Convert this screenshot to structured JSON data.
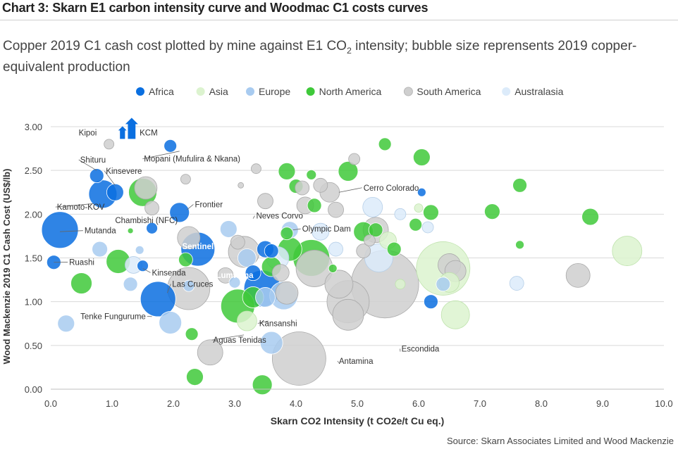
{
  "title": "Chart 3: Skarn E1 carbon intensity curve and Woodmac C1 costs curves",
  "subtitle": {
    "before": "Copper 2019 C1 cash cost plotted by mine against E1 CO",
    "sub": "2",
    "after": " intensity; bubble size reprensents 2019 copper-equivalent production"
  },
  "source": "Source: Skarn Associates Limited and Wood Mackenzie",
  "chart_data": {
    "type": "scatter",
    "title": "Chart 3: Skarn E1 carbon intensity curve and Woodmac C1 costs curves",
    "xlabel": "Skarn CO2 Intensity (t CO2e/t Cu eq.)",
    "ylabel": "Wood Mackenzie 2019 C1 Cash Cost (US$/lb)",
    "xlim": [
      0,
      10
    ],
    "ylim": [
      0,
      3
    ],
    "x_ticks": [
      "0.0",
      "1.0",
      "2.0",
      "3.0",
      "4.0",
      "5.0",
      "6.0",
      "7.0",
      "8.0",
      "9.0",
      "10.0"
    ],
    "y_ticks": [
      "0.00",
      "0.50",
      "1.00",
      "1.50",
      "2.00",
      "2.50",
      "3.00"
    ],
    "grid": "horizontal",
    "legend_position": "top",
    "legend": [
      {
        "name": "Africa",
        "color": "#0a6fe0"
      },
      {
        "name": "Asia",
        "color": "#dcf3cf"
      },
      {
        "name": "Europe",
        "color": "#a8cbf0"
      },
      {
        "name": "North America",
        "color": "#3fc93a"
      },
      {
        "name": "South America",
        "color": "#cfcfcf"
      },
      {
        "name": "Australasia",
        "color": "#dcebfa"
      }
    ],
    "series": [
      {
        "name": "Africa",
        "color": "#0a6fe0",
        "points": [
          {
            "x": 0.15,
            "y": 1.82,
            "r": 26
          },
          {
            "x": 0.05,
            "y": 1.45,
            "r": 10
          },
          {
            "x": 0.75,
            "y": 2.44,
            "r": 10
          },
          {
            "x": 0.85,
            "y": 2.23,
            "r": 20
          },
          {
            "x": 1.05,
            "y": 2.25,
            "r": 12
          },
          {
            "x": 1.65,
            "y": 1.84,
            "r": 8
          },
          {
            "x": 1.95,
            "y": 2.78,
            "r": 9
          },
          {
            "x": 2.1,
            "y": 2.02,
            "r": 14
          },
          {
            "x": 2.4,
            "y": 1.6,
            "r": 24
          },
          {
            "x": 1.75,
            "y": 1.03,
            "r": 25
          },
          {
            "x": 1.5,
            "y": 1.41,
            "r": 8
          },
          {
            "x": 3.45,
            "y": 1.15,
            "r": 26
          },
          {
            "x": 3.5,
            "y": 1.6,
            "r": 12
          },
          {
            "x": 3.3,
            "y": 1.33,
            "r": 11
          },
          {
            "x": 3.6,
            "y": 1.58,
            "r": 10
          },
          {
            "x": 6.05,
            "y": 2.25,
            "r": 6
          },
          {
            "x": 6.2,
            "y": 1.0,
            "r": 10
          }
        ]
      },
      {
        "name": "Asia",
        "color": "#dcf3cf",
        "points": [
          {
            "x": 6.4,
            "y": 1.38,
            "r": 38
          },
          {
            "x": 6.6,
            "y": 0.85,
            "r": 20
          },
          {
            "x": 9.4,
            "y": 1.58,
            "r": 21
          },
          {
            "x": 6.5,
            "y": 1.22,
            "r": 14
          },
          {
            "x": 6.0,
            "y": 2.07,
            "r": 6
          },
          {
            "x": 5.7,
            "y": 1.2,
            "r": 7
          },
          {
            "x": 3.2,
            "y": 0.78,
            "r": 14
          },
          {
            "x": 5.5,
            "y": 1.7,
            "r": 12
          }
        ]
      },
      {
        "name": "Europe",
        "color": "#a8cbf0",
        "points": [
          {
            "x": 0.8,
            "y": 1.6,
            "r": 11
          },
          {
            "x": 0.25,
            "y": 0.75,
            "r": 12
          },
          {
            "x": 1.3,
            "y": 1.2,
            "r": 10
          },
          {
            "x": 1.45,
            "y": 1.59,
            "r": 6
          },
          {
            "x": 1.95,
            "y": 0.76,
            "r": 16
          },
          {
            "x": 2.25,
            "y": 1.18,
            "r": 8
          },
          {
            "x": 2.9,
            "y": 1.83,
            "r": 12
          },
          {
            "x": 3.2,
            "y": 1.5,
            "r": 13
          },
          {
            "x": 3.5,
            "y": 1.05,
            "r": 14
          },
          {
            "x": 3.8,
            "y": 1.07,
            "r": 20
          },
          {
            "x": 3.6,
            "y": 0.53,
            "r": 16
          },
          {
            "x": 3.9,
            "y": 1.82,
            "r": 12
          },
          {
            "x": 6.4,
            "y": 1.2,
            "r": 10
          },
          {
            "x": 3.0,
            "y": 1.22,
            "r": 8
          }
        ]
      },
      {
        "name": "North America",
        "color": "#3fc93a",
        "points": [
          {
            "x": 1.5,
            "y": 2.25,
            "r": 20
          },
          {
            "x": 1.1,
            "y": 1.46,
            "r": 17
          },
          {
            "x": 0.5,
            "y": 1.21,
            "r": 15
          },
          {
            "x": 2.2,
            "y": 1.48,
            "r": 10
          },
          {
            "x": 2.3,
            "y": 0.63,
            "r": 9
          },
          {
            "x": 2.35,
            "y": 0.14,
            "r": 12
          },
          {
            "x": 3.05,
            "y": 0.95,
            "r": 24
          },
          {
            "x": 3.3,
            "y": 1.05,
            "r": 15
          },
          {
            "x": 3.45,
            "y": 0.05,
            "r": 14
          },
          {
            "x": 3.85,
            "y": 2.49,
            "r": 12
          },
          {
            "x": 4.0,
            "y": 2.32,
            "r": 10
          },
          {
            "x": 4.3,
            "y": 2.1,
            "r": 10
          },
          {
            "x": 4.25,
            "y": 2.45,
            "r": 7
          },
          {
            "x": 4.85,
            "y": 2.49,
            "r": 14
          },
          {
            "x": 5.45,
            "y": 2.8,
            "r": 9
          },
          {
            "x": 6.05,
            "y": 2.65,
            "r": 12
          },
          {
            "x": 5.1,
            "y": 1.8,
            "r": 14
          },
          {
            "x": 5.3,
            "y": 1.82,
            "r": 10
          },
          {
            "x": 6.2,
            "y": 2.02,
            "r": 11
          },
          {
            "x": 5.6,
            "y": 1.6,
            "r": 10
          },
          {
            "x": 5.95,
            "y": 1.88,
            "r": 9
          },
          {
            "x": 7.2,
            "y": 2.03,
            "r": 11
          },
          {
            "x": 7.65,
            "y": 2.33,
            "r": 10
          },
          {
            "x": 7.65,
            "y": 1.65,
            "r": 6
          },
          {
            "x": 8.8,
            "y": 1.97,
            "r": 12
          },
          {
            "x": 4.25,
            "y": 1.5,
            "r": 26
          },
          {
            "x": 3.9,
            "y": 1.6,
            "r": 17
          },
          {
            "x": 3.6,
            "y": 1.4,
            "r": 14
          },
          {
            "x": 4.6,
            "y": 1.38,
            "r": 6
          },
          {
            "x": 3.85,
            "y": 1.78,
            "r": 9
          },
          {
            "x": 1.3,
            "y": 1.81,
            "r": 4
          }
        ]
      },
      {
        "name": "South America",
        "color": "#cfcfcf",
        "points": [
          {
            "x": 5.45,
            "y": 1.2,
            "r": 48
          },
          {
            "x": 4.05,
            "y": 0.35,
            "r": 38
          },
          {
            "x": 4.85,
            "y": 1.0,
            "r": 30
          },
          {
            "x": 4.7,
            "y": 1.2,
            "r": 20
          },
          {
            "x": 4.85,
            "y": 0.85,
            "r": 22
          },
          {
            "x": 4.3,
            "y": 1.38,
            "r": 26
          },
          {
            "x": 3.15,
            "y": 1.57,
            "r": 22
          },
          {
            "x": 2.25,
            "y": 1.15,
            "r": 30
          },
          {
            "x": 2.6,
            "y": 0.42,
            "r": 18
          },
          {
            "x": 2.25,
            "y": 1.73,
            "r": 16
          },
          {
            "x": 1.55,
            "y": 2.3,
            "r": 16
          },
          {
            "x": 1.65,
            "y": 2.07,
            "r": 10
          },
          {
            "x": 2.2,
            "y": 2.4,
            "r": 7
          },
          {
            "x": 3.1,
            "y": 2.33,
            "r": 4
          },
          {
            "x": 3.35,
            "y": 2.52,
            "r": 7
          },
          {
            "x": 3.5,
            "y": 2.15,
            "r": 11
          },
          {
            "x": 4.1,
            "y": 2.3,
            "r": 10
          },
          {
            "x": 4.4,
            "y": 2.33,
            "r": 10
          },
          {
            "x": 4.55,
            "y": 2.25,
            "r": 14
          },
          {
            "x": 4.15,
            "y": 2.1,
            "r": 12
          },
          {
            "x": 4.65,
            "y": 2.05,
            "r": 11
          },
          {
            "x": 4.95,
            "y": 2.63,
            "r": 8
          },
          {
            "x": 0.95,
            "y": 2.8,
            "r": 7
          },
          {
            "x": 5.3,
            "y": 1.82,
            "r": 18
          },
          {
            "x": 5.2,
            "y": 1.7,
            "r": 8
          },
          {
            "x": 5.1,
            "y": 1.58,
            "r": 10
          },
          {
            "x": 6.5,
            "y": 1.42,
            "r": 16
          },
          {
            "x": 6.6,
            "y": 1.35,
            "r": 15
          },
          {
            "x": 8.6,
            "y": 1.3,
            "r": 17
          },
          {
            "x": 2.85,
            "y": 1.3,
            "r": 11
          },
          {
            "x": 3.05,
            "y": 1.68,
            "r": 10
          },
          {
            "x": 3.75,
            "y": 1.33,
            "r": 12
          },
          {
            "x": 3.85,
            "y": 1.1,
            "r": 16
          }
        ]
      },
      {
        "name": "Australasia",
        "color": "#dcebfa",
        "points": [
          {
            "x": 5.25,
            "y": 2.08,
            "r": 14
          },
          {
            "x": 5.35,
            "y": 1.5,
            "r": 20
          },
          {
            "x": 6.15,
            "y": 1.85,
            "r": 8
          },
          {
            "x": 5.7,
            "y": 2.0,
            "r": 8
          },
          {
            "x": 7.6,
            "y": 1.21,
            "r": 10
          },
          {
            "x": 1.35,
            "y": 1.42,
            "r": 12
          },
          {
            "x": 3.7,
            "y": 1.5,
            "r": 16
          },
          {
            "x": 4.4,
            "y": 1.8,
            "r": 12
          },
          {
            "x": 4.65,
            "y": 1.6,
            "r": 10
          }
        ]
      }
    ],
    "annotations": [
      {
        "text": "Kipoi",
        "x": 0.95,
        "y": 2.8,
        "align": "end",
        "lx": 0.75,
        "ly": 2.9,
        "arrow": true
      },
      {
        "text": "KCM",
        "x": 1.3,
        "y": 2.8,
        "align": "start",
        "lx": 1.45,
        "ly": 2.9,
        "arrow": true
      },
      {
        "text": "Mopani (Mufulira & Nkana)",
        "x": 1.95,
        "y": 2.78,
        "align": "start",
        "lx": 1.52,
        "ly": 2.6,
        "line_to": [
          2.1,
          2.72
        ]
      },
      {
        "text": "Shituru",
        "x": 0.75,
        "y": 2.44,
        "align": "start",
        "lx": 0.48,
        "ly": 2.59,
        "line_to": [
          0.75,
          2.5
        ]
      },
      {
        "text": "Kinsevere",
        "x": 1.05,
        "y": 2.25,
        "align": "start",
        "lx": 0.9,
        "ly": 2.46,
        "line_to": [
          1.05,
          2.33
        ]
      },
      {
        "text": "Kamoto-KOV",
        "x": 0.85,
        "y": 2.23,
        "align": "start",
        "lx": 0.1,
        "ly": 2.05,
        "line_to": [
          0.7,
          2.12
        ]
      },
      {
        "text": "Frontier",
        "x": 2.1,
        "y": 2.02,
        "align": "start",
        "lx": 2.35,
        "ly": 2.08,
        "line_to": [
          2.22,
          2.05
        ]
      },
      {
        "text": "Chambishi (NFC)",
        "x": 1.65,
        "y": 1.84,
        "align": "start",
        "lx": 1.05,
        "ly": 1.9
      },
      {
        "text": "Mutanda",
        "x": 0.15,
        "y": 1.82,
        "align": "start",
        "lx": 0.55,
        "ly": 1.78,
        "line_to": [
          0.15,
          1.8
        ]
      },
      {
        "text": "Sentinel",
        "x": 2.4,
        "y": 1.6,
        "align": "middle",
        "lx": 2.4,
        "ly": 1.6,
        "white": true
      },
      {
        "text": "Ruashi",
        "x": 0.05,
        "y": 1.45,
        "align": "start",
        "lx": 0.3,
        "ly": 1.42,
        "line_to": [
          0.05,
          1.45
        ]
      },
      {
        "text": "Kinsenda",
        "x": 1.5,
        "y": 1.41,
        "align": "start",
        "lx": 1.65,
        "ly": 1.3,
        "line_to": [
          1.5,
          1.38
        ]
      },
      {
        "text": "Las Cruces",
        "x": 1.75,
        "y": 1.03,
        "align": "start",
        "lx": 1.98,
        "ly": 1.17,
        "line_to": [
          1.9,
          1.1
        ]
      },
      {
        "text": "Tenke Fungurume",
        "x": 1.75,
        "y": 1.03,
        "align": "end",
        "lx": 1.55,
        "ly": 0.8,
        "line_to": [
          1.65,
          0.83
        ]
      },
      {
        "text": "Neves Corvo",
        "x": 3.15,
        "y": 1.57,
        "align": "start",
        "lx": 3.35,
        "ly": 1.95,
        "line_to": [
          3.3,
          1.95
        ]
      },
      {
        "text": "Olympic Dam",
        "x": 3.9,
        "y": 1.82,
        "align": "start",
        "lx": 4.1,
        "ly": 1.8,
        "line_to": [
          3.95,
          1.82
        ]
      },
      {
        "text": "Lumwana",
        "x": 3.45,
        "y": 1.15,
        "align": "middle",
        "lx": 3.0,
        "ly": 1.27,
        "white": true
      },
      {
        "text": "Cerro Colorado",
        "x": 4.55,
        "y": 2.25,
        "align": "start",
        "lx": 5.1,
        "ly": 2.27,
        "line_to": [
          4.7,
          2.25
        ]
      },
      {
        "text": "Kansanshi",
        "x": 3.45,
        "y": 1.15,
        "align": "start",
        "lx": 3.4,
        "ly": 0.72,
        "line_to": [
          3.55,
          0.78
        ]
      },
      {
        "text": "Aguas Tenidas",
        "x": 3.2,
        "y": 0.78,
        "align": "start",
        "lx": 2.65,
        "ly": 0.53,
        "line_to": [
          3.15,
          0.62
        ]
      },
      {
        "text": "Escondida",
        "x": 5.45,
        "y": 1.2,
        "align": "start",
        "lx": 5.72,
        "ly": 0.43,
        "line_to": [
          5.7,
          0.43
        ]
      },
      {
        "text": "Antamina",
        "x": 4.05,
        "y": 0.35,
        "align": "start",
        "lx": 4.7,
        "ly": 0.29,
        "line_to": [
          4.7,
          0.3
        ]
      }
    ]
  }
}
